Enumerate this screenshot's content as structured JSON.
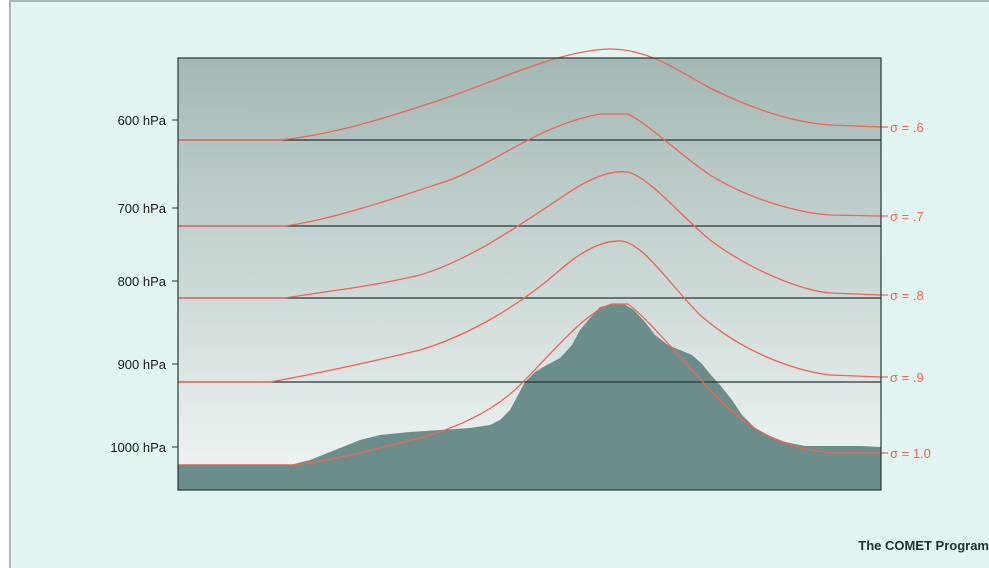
{
  "diagram": {
    "credit": "The COMET Program",
    "colors": {
      "background": "#e2f4f1",
      "frame_border": "#a7b9b6",
      "plot_top": "#a3b8b5",
      "plot_bottom": "#f1f6f6",
      "terrain": "#6b8e8c",
      "pressure_line": "#22383a",
      "sigma_line": "#f06450"
    },
    "pressure_levels": [
      {
        "label": "600 hPa"
      },
      {
        "label": "700 hPa"
      },
      {
        "label": "800 hPa"
      },
      {
        "label": "900 hPa"
      },
      {
        "label": "1000 hPa"
      }
    ],
    "sigma_levels": [
      {
        "label": "σ = .6"
      },
      {
        "label": "σ = .7"
      },
      {
        "label": "σ = .8"
      },
      {
        "label": "σ = .9"
      },
      {
        "label": "σ = 1.0"
      }
    ]
  }
}
